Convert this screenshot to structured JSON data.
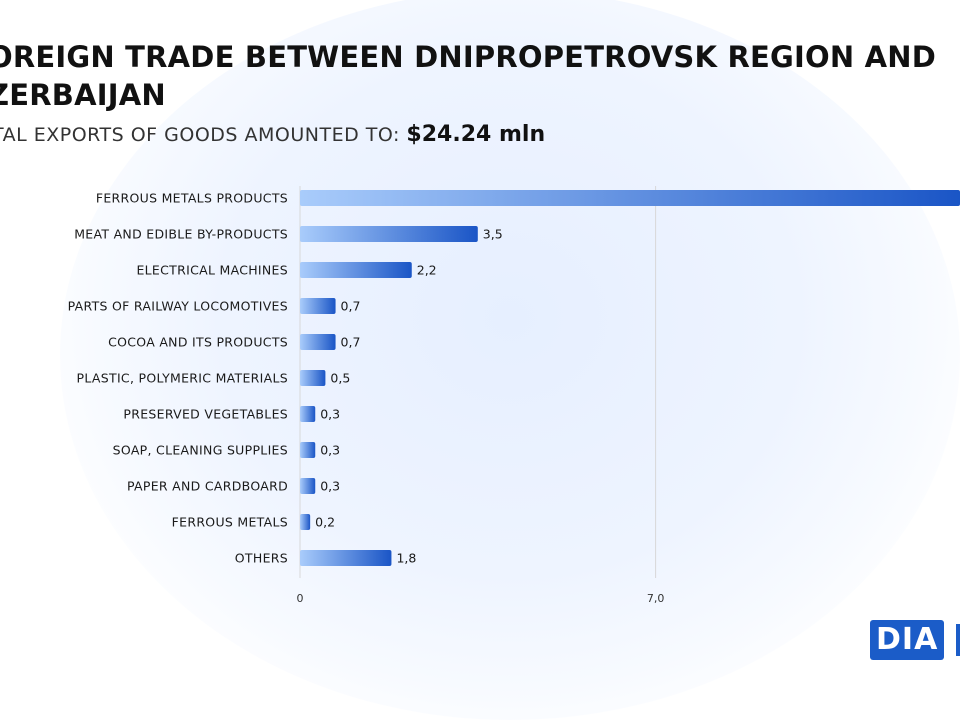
{
  "header": {
    "title": "OREIGN TRADE BETWEEN DNIPROPETROVSK REGION AND\nZERBAIJAN",
    "subtitle_prefix": "TAL EXPORTS OF GOODS AMOUNTED TO: ",
    "subtitle_total": "$24.24  mln"
  },
  "logo": {
    "text": "DIA"
  },
  "colors": {
    "bar_dark": "#1a55c6",
    "bar_light": "#a9ccfb",
    "grid": "#d8d8d8"
  },
  "chart_data": {
    "type": "bar",
    "orientation": "horizontal",
    "categories": [
      "FERROUS METALS PRODUCTS",
      "MEAT AND EDIBLE BY-PRODUCTS",
      "ELECTRICAL MACHINES",
      "PARTS OF RAILWAY LOCOMOTIVES",
      "COCOA AND ITS PRODUCTS",
      "PLASTIC, POLYMERIC MATERIALS",
      "PRESERVED VEGETABLES",
      "SOAP, CLEANING SUPPLIES",
      "PAPER AND CARDBOARD",
      "FERROUS METALS",
      "OTHERS"
    ],
    "values": [
      14.0,
      3.5,
      2.2,
      0.7,
      0.7,
      0.5,
      0.3,
      0.3,
      0.3,
      0.2,
      1.8
    ],
    "value_labels": [
      "",
      "3,5",
      "2,2",
      "0,7",
      "0,7",
      "0,5",
      "0,3",
      "0,3",
      "0,3",
      "0,2",
      "1,8"
    ],
    "x_ticks": [
      0,
      7
    ],
    "x_tick_labels": [
      "0",
      "7,0"
    ],
    "grid": true
  }
}
